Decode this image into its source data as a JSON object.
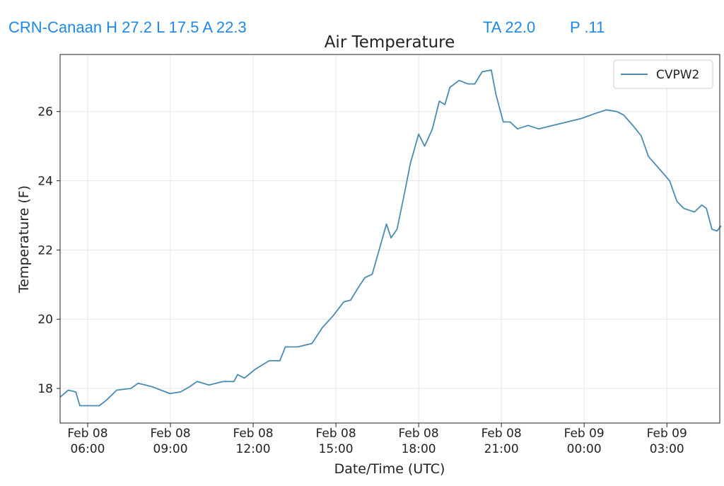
{
  "header": {
    "station": "CRN-Canaan H 27.2 L 17.5 A 22.3",
    "ta": "TA 22.0",
    "p": "P .11"
  },
  "chart_data": {
    "type": "line",
    "title": "Air Temperature",
    "x_label": "Date/Time (UTC)",
    "y_label": "Temperature (F)",
    "x": [
      "02-08T05:00",
      "02-08T05:18",
      "02-08T05:34",
      "02-08T05:43",
      "02-08T06:25",
      "02-08T06:40",
      "02-08T07:03",
      "02-08T07:34",
      "02-08T07:50",
      "02-08T08:20",
      "02-08T08:59",
      "02-08T09:22",
      "02-08T09:42",
      "02-08T09:58",
      "02-08T10:24",
      "02-08T10:55",
      "02-08T11:18",
      "02-08T11:26",
      "02-08T11:41",
      "02-08T12:04",
      "02-08T12:35",
      "02-08T12:58",
      "02-08T13:10",
      "02-08T13:37",
      "02-08T14:08",
      "02-08T14:30",
      "02-08T14:54",
      "02-08T15:17",
      "02-08T15:32",
      "02-08T15:48",
      "02-08T16:03",
      "02-08T16:19",
      "02-08T16:34",
      "02-08T16:50",
      "02-08T17:00",
      "02-08T17:13",
      "02-08T17:27",
      "02-08T17:42",
      "02-08T18:00",
      "02-08T18:13",
      "02-08T18:30",
      "02-08T18:45",
      "02-08T18:57",
      "02-08T19:08",
      "02-08T19:28",
      "02-08T19:47",
      "02-08T20:02",
      "02-08T20:18",
      "02-08T20:38",
      "02-08T20:48",
      "02-08T21:04",
      "02-08T21:19",
      "02-08T21:35",
      "02-08T21:58",
      "02-08T22:21",
      "02-08T22:52",
      "02-08T23:23",
      "02-08T23:54",
      "02-09T00:25",
      "02-09T00:48",
      "02-09T01:11",
      "02-09T01:26",
      "02-09T01:49",
      "02-09T02:04",
      "02-09T02:20",
      "02-09T02:43",
      "02-09T03:06",
      "02-09T03:22",
      "02-09T03:37",
      "02-09T04:00",
      "02-09T04:16",
      "02-09T04:26",
      "02-09T04:38",
      "02-09T04:49",
      "02-09T04:58"
    ],
    "series": [
      {
        "name": "CVPW2",
        "color": "#4a8bb3",
        "values": [
          17.75,
          17.95,
          17.9,
          17.5,
          17.5,
          17.65,
          17.95,
          18.0,
          18.15,
          18.05,
          17.85,
          17.9,
          18.05,
          18.2,
          18.1,
          18.2,
          18.2,
          18.4,
          18.3,
          18.55,
          18.8,
          18.8,
          19.2,
          19.2,
          19.3,
          19.75,
          20.1,
          20.5,
          20.55,
          20.9,
          21.2,
          21.3,
          22.0,
          22.75,
          22.35,
          22.6,
          23.5,
          24.5,
          25.35,
          25.0,
          25.5,
          26.3,
          26.2,
          26.7,
          26.9,
          26.8,
          26.8,
          27.15,
          27.2,
          26.5,
          25.7,
          25.7,
          25.5,
          25.6,
          25.5,
          25.6,
          25.7,
          25.8,
          25.95,
          26.05,
          26.0,
          25.9,
          25.55,
          25.3,
          24.7,
          24.35,
          24.0,
          23.4,
          23.2,
          23.1,
          23.3,
          23.2,
          22.6,
          22.55,
          22.7
        ]
      }
    ],
    "xlim": [
      "02-08T05:00",
      "02-09T04:55"
    ],
    "xticks": [
      {
        "value": "02-08T06:00",
        "label": "Feb 08\n06:00"
      },
      {
        "value": "02-08T09:00",
        "label": "Feb 08\n09:00"
      },
      {
        "value": "02-08T12:00",
        "label": "Feb 08\n12:00"
      },
      {
        "value": "02-08T15:00",
        "label": "Feb 08\n15:00"
      },
      {
        "value": "02-08T18:00",
        "label": "Feb 08\n18:00"
      },
      {
        "value": "02-08T21:00",
        "label": "Feb 08\n21:00"
      },
      {
        "value": "02-09T00:00",
        "label": "Feb 09\n00:00"
      },
      {
        "value": "02-09T03:00",
        "label": "Feb 09\n03:00"
      }
    ],
    "ylim": [
      17.0,
      27.65
    ],
    "yticks": [
      18,
      20,
      22,
      24,
      26
    ],
    "grid": true,
    "legend": "upper right"
  }
}
